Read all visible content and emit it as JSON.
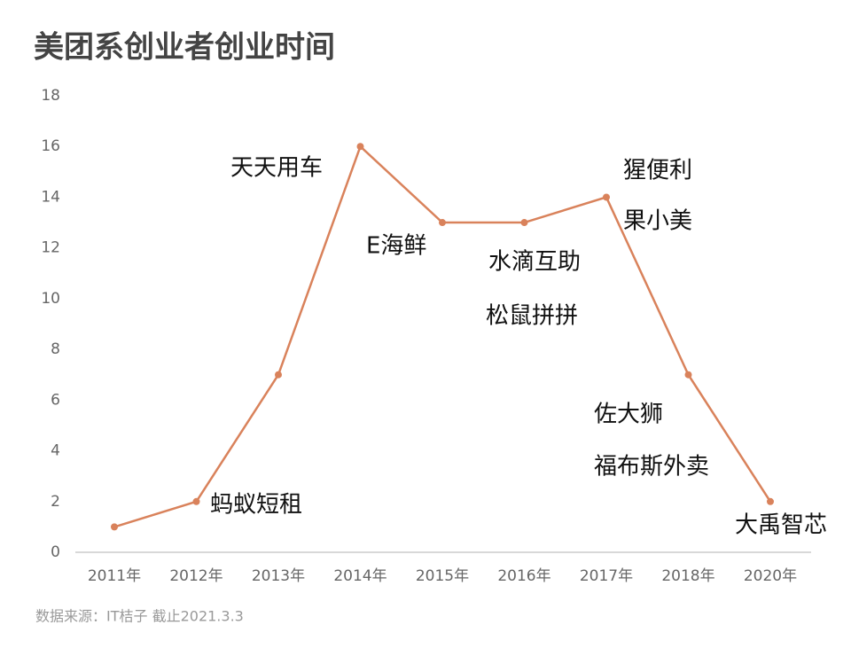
{
  "chart_data": {
    "type": "line",
    "title": "美团系创业者创业时间",
    "categories": [
      "2011年",
      "2012年",
      "2013年",
      "2014年",
      "2015年",
      "2016年",
      "2017年",
      "2018年",
      "2020年"
    ],
    "values": [
      1,
      2,
      7,
      16,
      13,
      13,
      14,
      7,
      2
    ],
    "color": "#d9825b",
    "ylim": [
      0,
      18
    ],
    "yticks": [
      0,
      2,
      4,
      6,
      8,
      10,
      12,
      14,
      16,
      18
    ],
    "grid": false,
    "annotations": [
      "蚂蚁短租",
      "天天用车",
      "E海鲜",
      "水滴互助",
      "松鼠拼拼",
      "猩便利",
      "果小美",
      "佐大狮",
      "福布斯外卖",
      "大禹智芯"
    ],
    "source": "数据来源：IT桔子 截止2021.3.3"
  }
}
